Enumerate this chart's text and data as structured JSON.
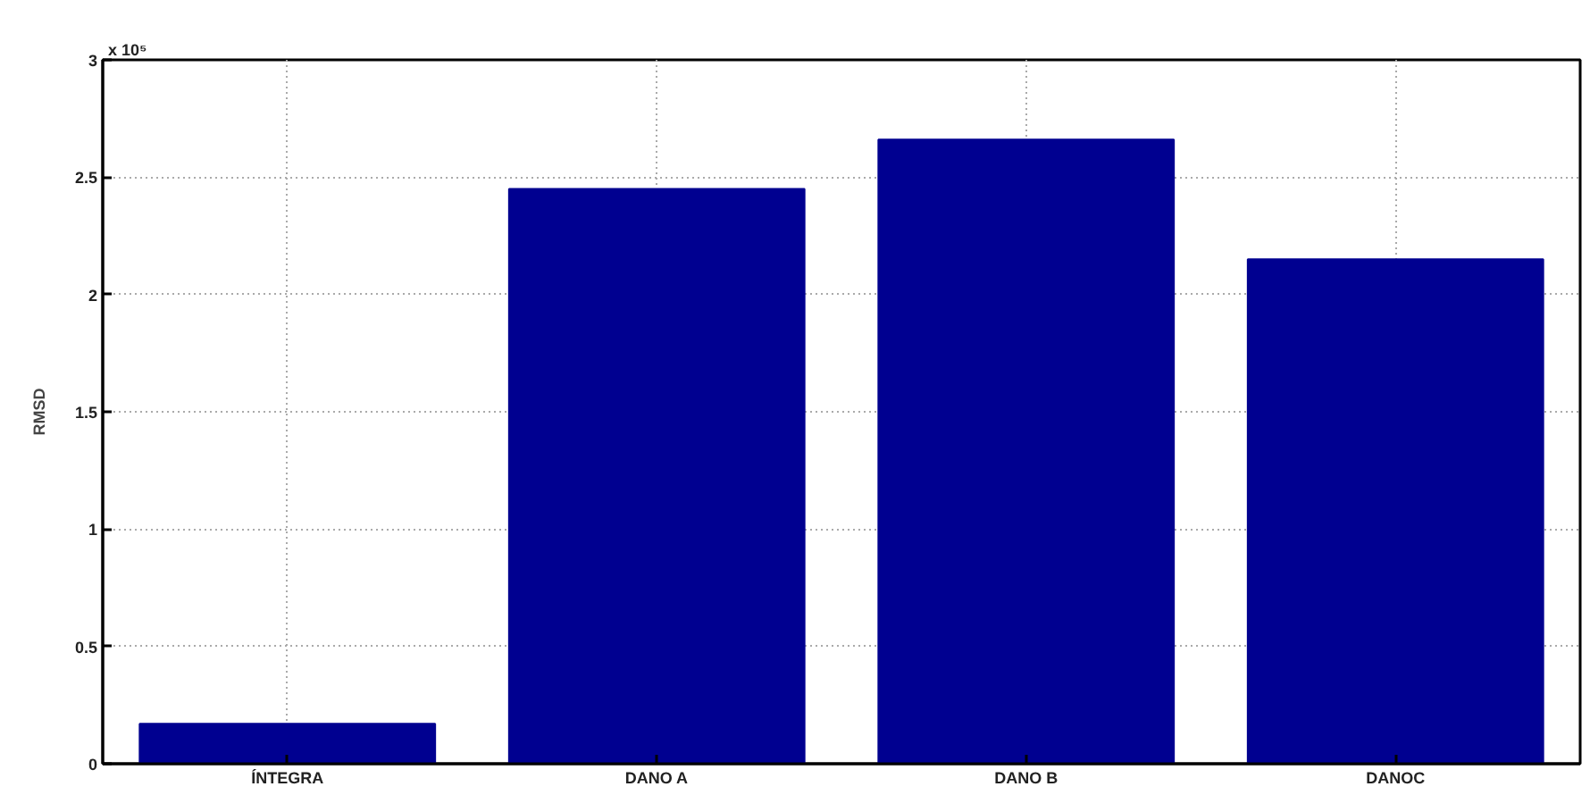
{
  "chart_data": {
    "type": "bar",
    "categories": [
      "ÍNTEGRA",
      "DANO A",
      "DANO B",
      "DANOC"
    ],
    "values": [
      0.17,
      2.45,
      2.66,
      2.15
    ],
    "color": "#000090",
    "ylabel": "RMSD",
    "ylim": [
      0,
      3
    ],
    "yticks": [
      0,
      0.5,
      1,
      1.5,
      2,
      2.5,
      3
    ],
    "grid": true,
    "annotations": [
      "x 10⁵"
    ]
  }
}
